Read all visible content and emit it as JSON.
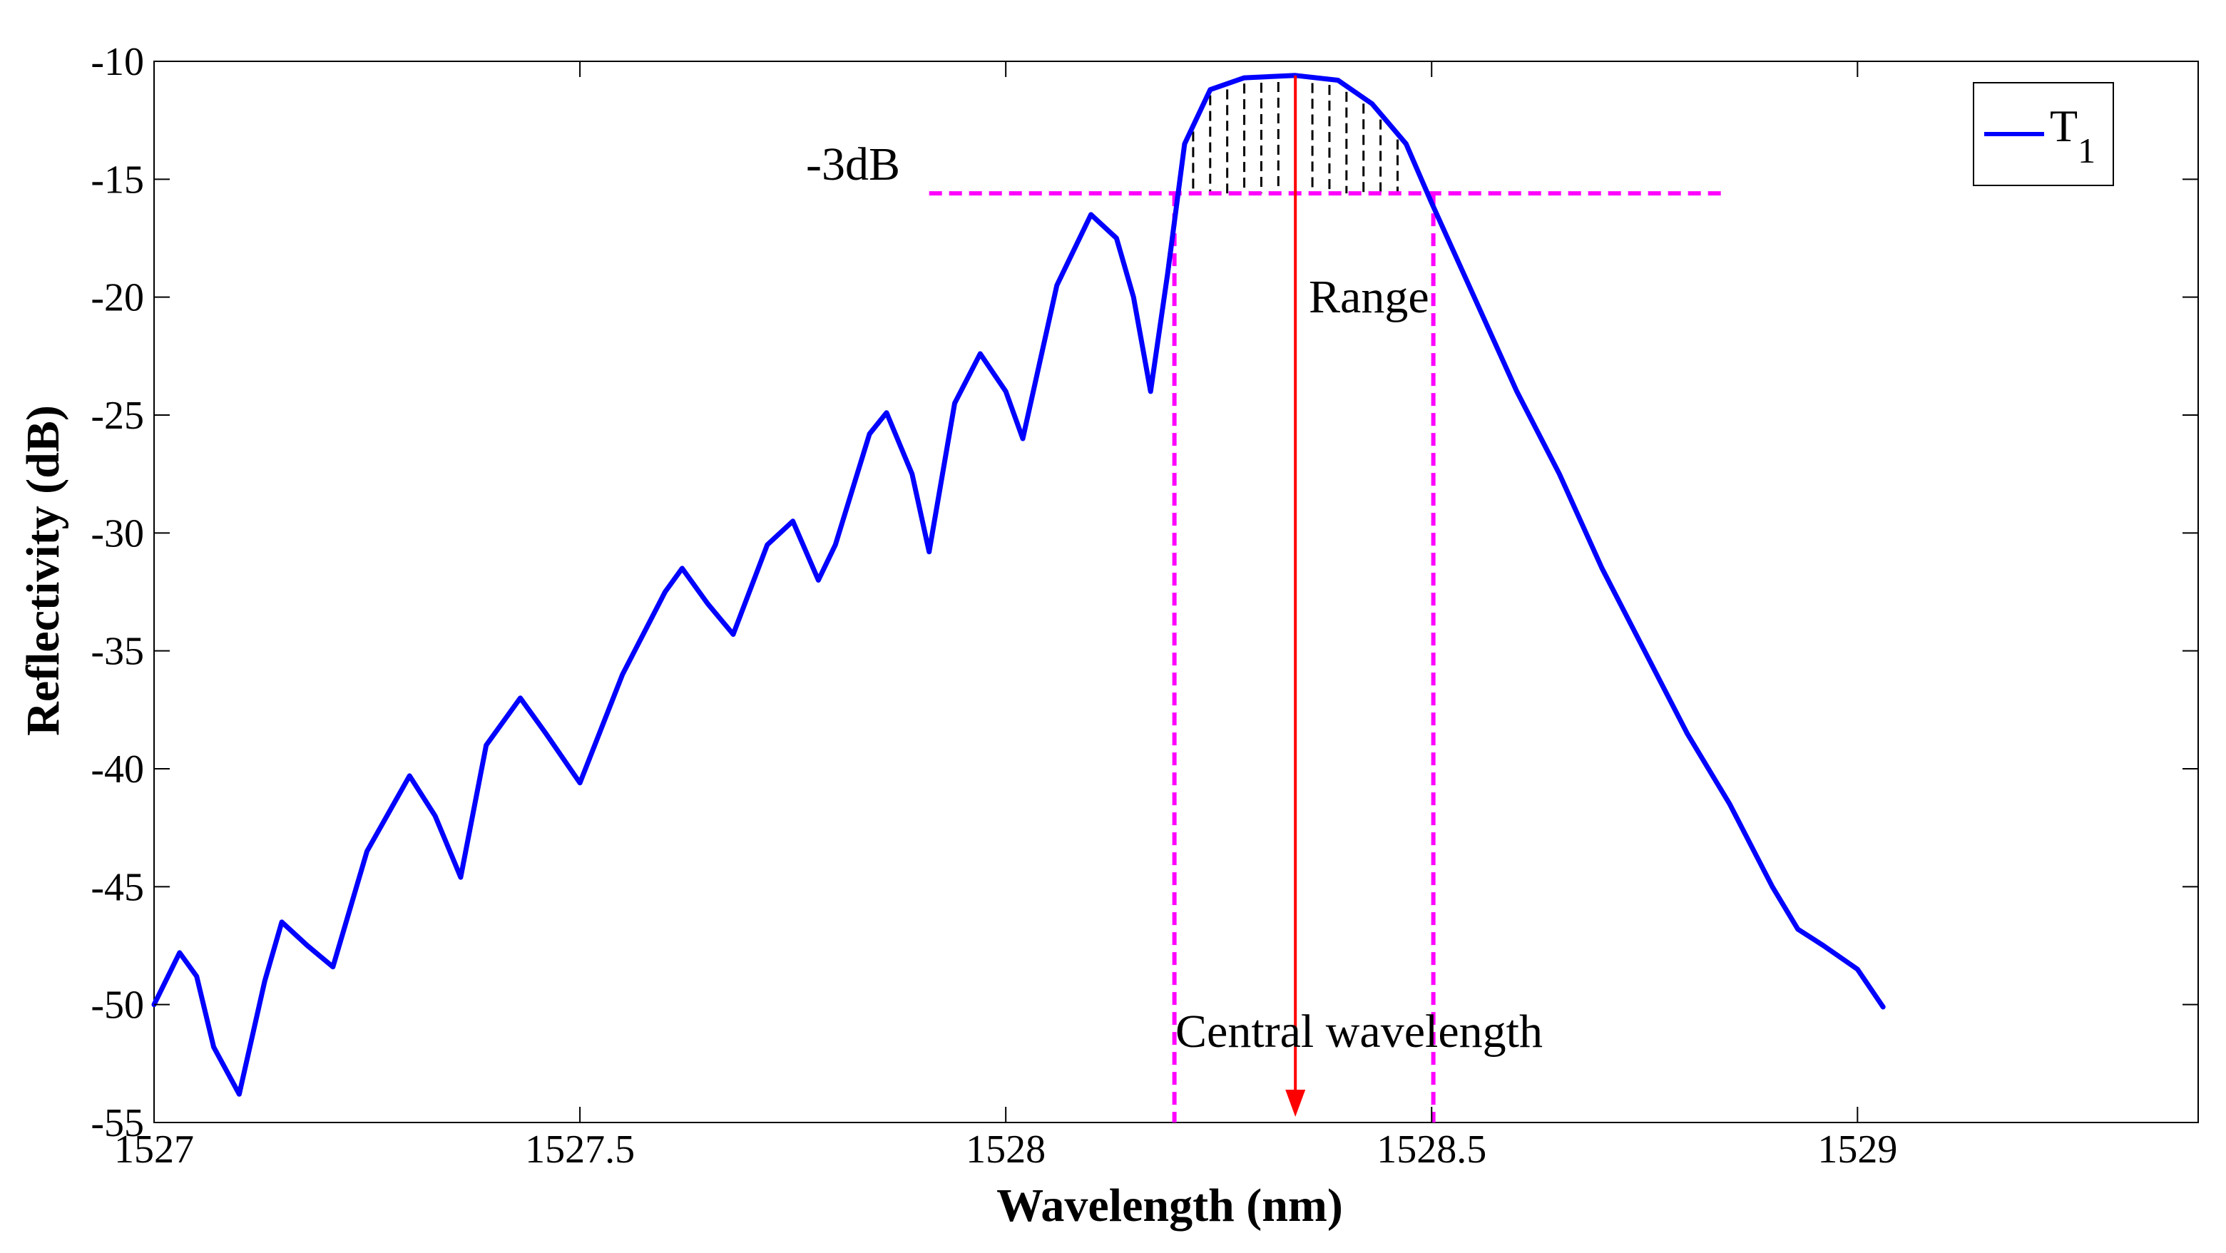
{
  "chart_data": {
    "type": "line",
    "title": "",
    "xlabel": "Wavelength (nm)",
    "ylabel": "Reflectivity (dB)",
    "xlim": [
      1527,
      1529.4
    ],
    "ylim": [
      -55,
      -10
    ],
    "xticks": [
      1527,
      1527.5,
      1528,
      1528.5,
      1529
    ],
    "xtick_labels": [
      "1527",
      "1527.5",
      "1528",
      "1528.5",
      "1529"
    ],
    "yticks": [
      -10,
      -15,
      -20,
      -25,
      -30,
      -35,
      -40,
      -45,
      -50,
      -55
    ],
    "ytick_labels": [
      "-10",
      "-15",
      "-20",
      "-25",
      "-30",
      "-35",
      "-40",
      "-45",
      "-50",
      "-55"
    ],
    "legend": {
      "position": "top-right",
      "entries": [
        {
          "name": "T",
          "subscript": "1",
          "color": "#0000ff"
        }
      ]
    },
    "series": [
      {
        "name": "T1",
        "color": "#0000ff",
        "points": [
          [
            1527.0,
            -50.0
          ],
          [
            1527.03,
            -47.8
          ],
          [
            1527.05,
            -48.8
          ],
          [
            1527.07,
            -51.8
          ],
          [
            1527.1,
            -53.8
          ],
          [
            1527.13,
            -49.0
          ],
          [
            1527.15,
            -46.5
          ],
          [
            1527.18,
            -47.5
          ],
          [
            1527.21,
            -48.4
          ],
          [
            1527.25,
            -43.5
          ],
          [
            1527.3,
            -40.3
          ],
          [
            1527.33,
            -42.0
          ],
          [
            1527.36,
            -44.6
          ],
          [
            1527.39,
            -39.0
          ],
          [
            1527.43,
            -37.0
          ],
          [
            1527.46,
            -38.5
          ],
          [
            1527.5,
            -40.6
          ],
          [
            1527.55,
            -36.0
          ],
          [
            1527.6,
            -32.5
          ],
          [
            1527.62,
            -31.5
          ],
          [
            1527.65,
            -33.0
          ],
          [
            1527.68,
            -34.3
          ],
          [
            1527.72,
            -30.5
          ],
          [
            1527.75,
            -29.5
          ],
          [
            1527.78,
            -32.0
          ],
          [
            1527.8,
            -30.5
          ],
          [
            1527.84,
            -25.8
          ],
          [
            1527.86,
            -24.9
          ],
          [
            1527.89,
            -27.5
          ],
          [
            1527.91,
            -30.8
          ],
          [
            1527.94,
            -24.5
          ],
          [
            1527.97,
            -22.4
          ],
          [
            1528.0,
            -24.0
          ],
          [
            1528.02,
            -26.0
          ],
          [
            1528.06,
            -19.5
          ],
          [
            1528.1,
            -16.5
          ],
          [
            1528.13,
            -17.5
          ],
          [
            1528.15,
            -20.0
          ],
          [
            1528.17,
            -24.0
          ],
          [
            1528.19,
            -19.0
          ],
          [
            1528.21,
            -13.5
          ],
          [
            1528.24,
            -11.2
          ],
          [
            1528.28,
            -10.7
          ],
          [
            1528.34,
            -10.6
          ],
          [
            1528.39,
            -10.8
          ],
          [
            1528.43,
            -11.8
          ],
          [
            1528.47,
            -13.5
          ],
          [
            1528.5,
            -16.0
          ],
          [
            1528.55,
            -20.0
          ],
          [
            1528.6,
            -24.0
          ],
          [
            1528.65,
            -27.5
          ],
          [
            1528.7,
            -31.5
          ],
          [
            1528.75,
            -35.0
          ],
          [
            1528.8,
            -38.5
          ],
          [
            1528.85,
            -41.5
          ],
          [
            1528.9,
            -45.0
          ],
          [
            1528.93,
            -46.8
          ],
          [
            1528.96,
            -47.5
          ],
          [
            1528.98,
            -48.0
          ],
          [
            1529.0,
            -48.5
          ],
          [
            1529.03,
            -50.1
          ]
        ]
      }
    ],
    "annotations": {
      "db3_label": "-3dB",
      "range_label": "Range",
      "central_label": "Central wavelength",
      "threshold_db": -15.6,
      "threshold_x_range": [
        1527.91,
        1528.84
      ],
      "band_edges": [
        1528.198,
        1528.502
      ],
      "central_wavelength": 1528.34,
      "hatch_x": [
        1528.22,
        1528.24,
        1528.26,
        1528.28,
        1528.3,
        1528.32,
        1528.34,
        1528.36,
        1528.38,
        1528.4,
        1528.42,
        1528.44,
        1528.46
      ],
      "marker_color": "#ff00ff",
      "arrow_color": "#ff0000"
    }
  }
}
